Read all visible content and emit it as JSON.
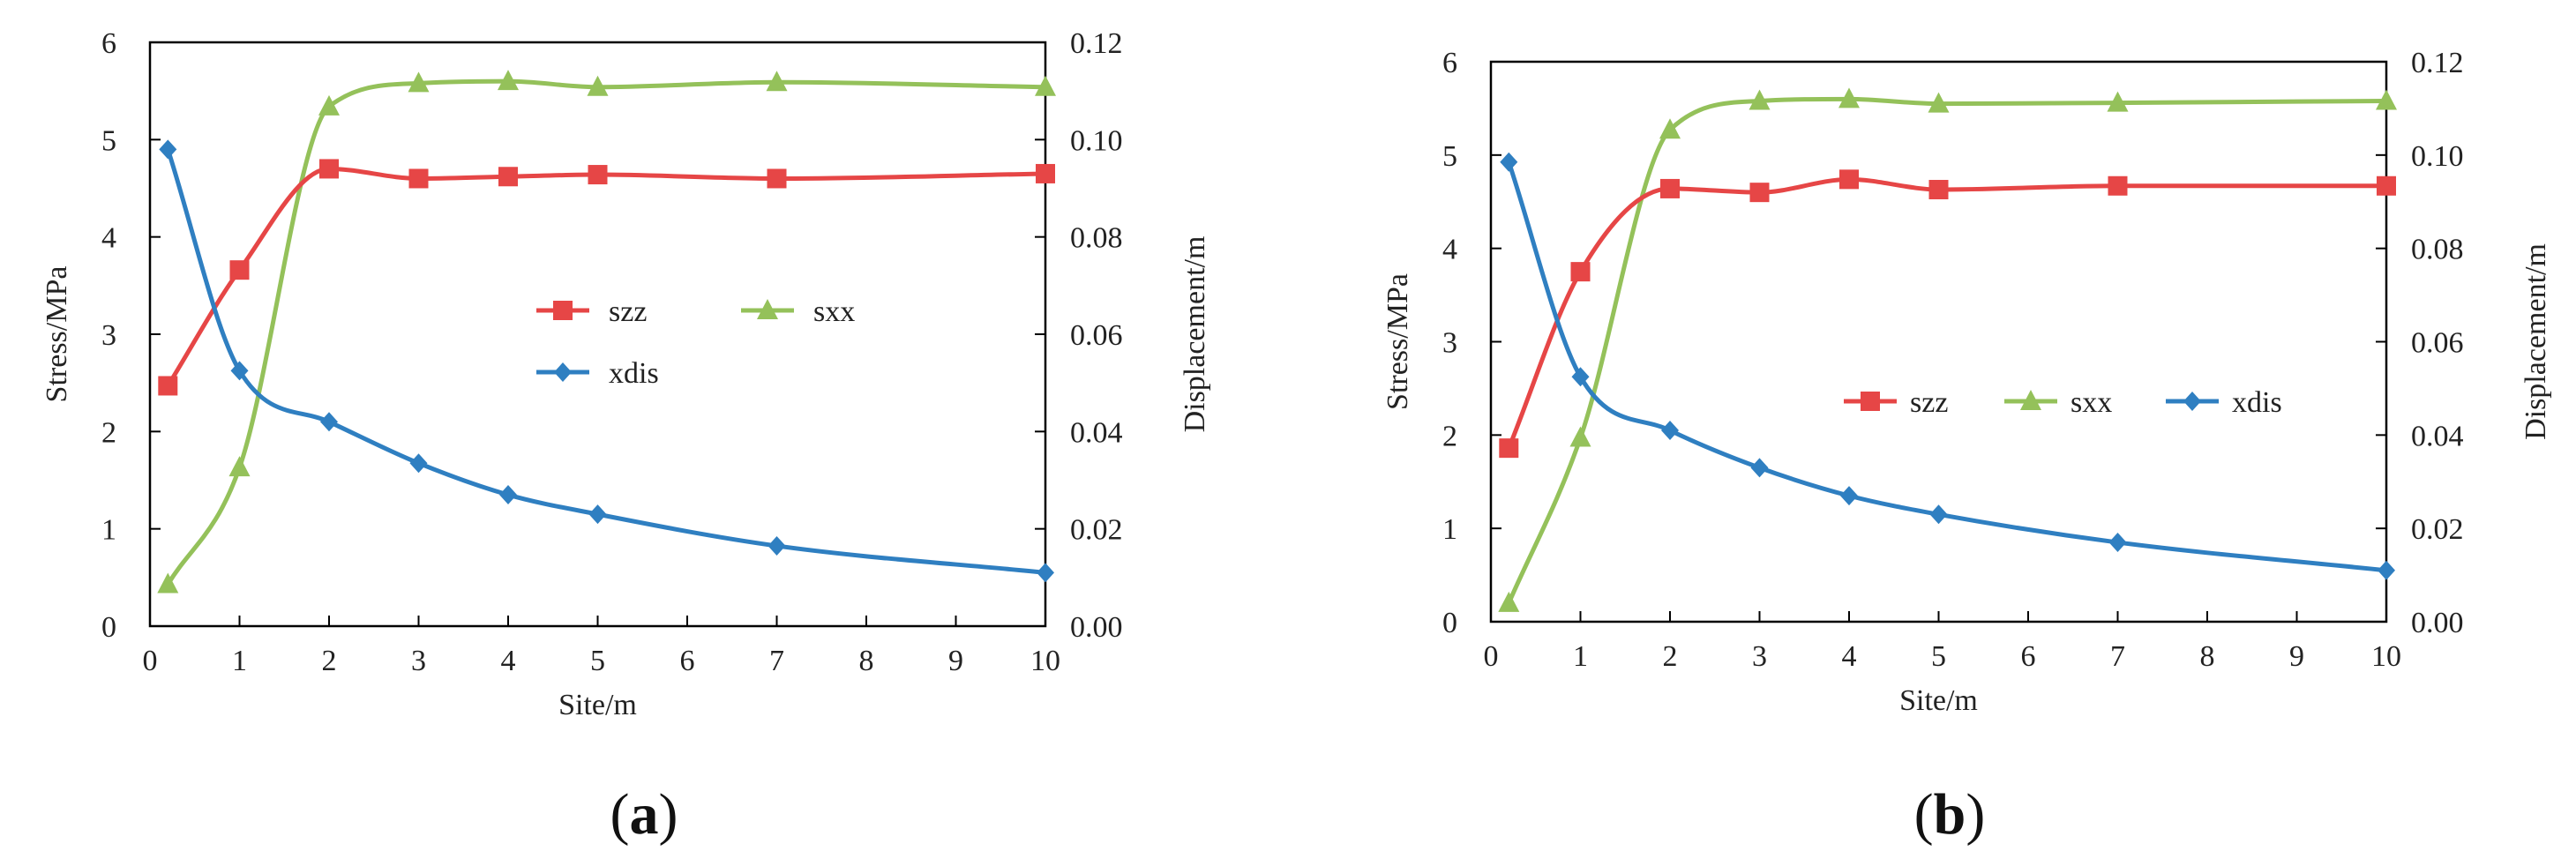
{
  "figure": {
    "panels": [
      "a",
      "b"
    ]
  },
  "chart_data": [
    {
      "type": "line",
      "panel_label": "a",
      "xlabel": "Site/m",
      "ylabel_left": "Stress/MPa",
      "ylabel_right": "Displacement/m",
      "xlim": [
        0,
        10
      ],
      "ylim_left": [
        0,
        6
      ],
      "ylim_right": [
        0,
        0.12
      ],
      "xticks": [
        "0",
        "1",
        "2",
        "3",
        "4",
        "5",
        "6",
        "7",
        "8",
        "9",
        "10"
      ],
      "yticks_left": [
        "0",
        "1",
        "2",
        "3",
        "4",
        "5",
        "6"
      ],
      "yticks_right": [
        "0.00",
        "0.02",
        "0.04",
        "0.06",
        "0.08",
        "0.10",
        "0.12"
      ],
      "legend_layout": "two-row",
      "series": [
        {
          "name": "szz",
          "axis": "left",
          "color": "#e64646",
          "marker": "square",
          "x": [
            0.2,
            1,
            2,
            3,
            4,
            5,
            7,
            10
          ],
          "values": [
            2.47,
            3.66,
            4.7,
            4.6,
            4.62,
            4.64,
            4.6,
            4.65
          ]
        },
        {
          "name": "sxx",
          "axis": "left",
          "color": "#94c15a",
          "marker": "triangle",
          "x": [
            0.2,
            1,
            2,
            3,
            4,
            5,
            7,
            10
          ],
          "values": [
            0.43,
            1.63,
            5.34,
            5.58,
            5.6,
            5.54,
            5.59,
            5.54
          ]
        },
        {
          "name": "xdis",
          "axis": "right",
          "color": "#2f7fc1",
          "marker": "diamond",
          "x": [
            0.2,
            1,
            2,
            3,
            4,
            5,
            7,
            10
          ],
          "values": [
            0.098,
            0.0525,
            0.042,
            0.0335,
            0.027,
            0.023,
            0.0165,
            0.011
          ]
        }
      ]
    },
    {
      "type": "line",
      "panel_label": "b",
      "xlabel": "Site/m",
      "ylabel_left": "Stress/MPa",
      "ylabel_right": "Displacement/m",
      "xlim": [
        0,
        10
      ],
      "ylim_left": [
        0,
        6
      ],
      "ylim_right": [
        0,
        0.12
      ],
      "xticks": [
        "0",
        "1",
        "2",
        "3",
        "4",
        "5",
        "6",
        "7",
        "8",
        "9",
        "10"
      ],
      "yticks_left": [
        "0",
        "1",
        "2",
        "3",
        "4",
        "5",
        "6"
      ],
      "yticks_right": [
        "0.00",
        "0.02",
        "0.04",
        "0.06",
        "0.08",
        "0.10",
        "0.12"
      ],
      "legend_layout": "one-row",
      "series": [
        {
          "name": "szz",
          "axis": "left",
          "color": "#e64646",
          "marker": "square",
          "x": [
            0.2,
            1,
            2,
            3,
            4,
            5,
            7,
            10
          ],
          "values": [
            1.86,
            3.75,
            4.64,
            4.6,
            4.74,
            4.63,
            4.67,
            4.67
          ]
        },
        {
          "name": "sxx",
          "axis": "left",
          "color": "#94c15a",
          "marker": "triangle",
          "x": [
            0.2,
            1,
            2,
            3,
            4,
            5,
            7,
            10
          ],
          "values": [
            0.2,
            1.97,
            5.27,
            5.58,
            5.6,
            5.55,
            5.56,
            5.58
          ]
        },
        {
          "name": "xdis",
          "axis": "right",
          "color": "#2f7fc1",
          "marker": "diamond",
          "x": [
            0.2,
            1,
            2,
            3,
            4,
            5,
            7,
            10
          ],
          "values": [
            0.0985,
            0.0525,
            0.041,
            0.033,
            0.027,
            0.023,
            0.017,
            0.011
          ]
        }
      ]
    }
  ]
}
